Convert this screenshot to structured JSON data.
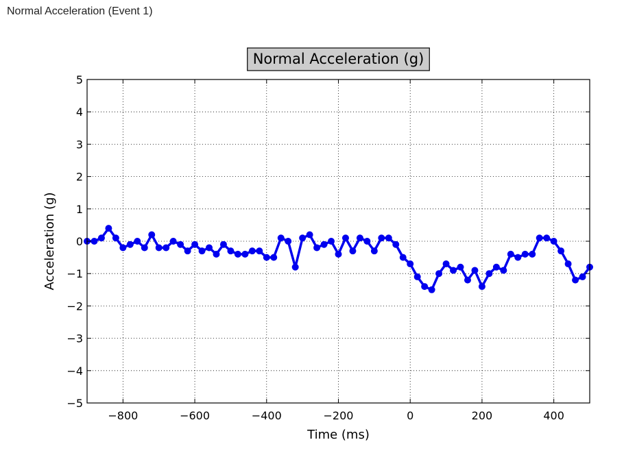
{
  "page": {
    "header": "Normal Acceleration (Event 1)"
  },
  "chart_data": {
    "type": "line",
    "title": "Normal Acceleration (g)",
    "xlabel": "Time (ms)",
    "ylabel": "Acceleration (g)",
    "xlim": [
      -900,
      500
    ],
    "ylim": [
      -5,
      5
    ],
    "xticks": [
      -800,
      -600,
      -400,
      -200,
      0,
      200,
      400
    ],
    "xtick_labels": [
      "−800",
      "−600",
      "−400",
      "−200",
      "0",
      "200",
      "400"
    ],
    "yticks": [
      5,
      4,
      3,
      2,
      1,
      0,
      -1,
      -2,
      -3,
      -4,
      -5
    ],
    "ytick_labels": [
      "5",
      "4",
      "3",
      "2",
      "1",
      "0",
      "−1",
      "−2",
      "−3",
      "−4",
      "−5"
    ],
    "grid": true,
    "marker": "circle",
    "series": [
      {
        "color": "#0000ee",
        "x": [
          -900,
          -880,
          -860,
          -840,
          -820,
          -800,
          -780,
          -760,
          -740,
          -720,
          -700,
          -680,
          -660,
          -640,
          -620,
          -600,
          -580,
          -560,
          -540,
          -520,
          -500,
          -480,
          -460,
          -440,
          -420,
          -400,
          -380,
          -360,
          -340,
          -320,
          -300,
          -280,
          -260,
          -240,
          -220,
          -200,
          -180,
          -160,
          -140,
          -120,
          -100,
          -80,
          -60,
          -40,
          -20,
          0,
          20,
          40,
          60,
          80,
          100,
          120,
          140,
          160,
          180,
          200,
          220,
          240,
          260,
          280,
          300,
          320,
          340,
          360,
          380,
          400,
          420,
          440,
          460,
          480,
          500
        ],
        "y": [
          0.0,
          0.0,
          0.1,
          0.4,
          0.1,
          -0.2,
          -0.1,
          0.0,
          -0.2,
          0.2,
          -0.2,
          -0.2,
          0.0,
          -0.1,
          -0.3,
          -0.1,
          -0.3,
          -0.2,
          -0.4,
          -0.1,
          -0.3,
          -0.4,
          -0.4,
          -0.3,
          -0.3,
          -0.5,
          -0.5,
          0.1,
          0.0,
          -0.8,
          0.1,
          0.2,
          -0.2,
          -0.1,
          0.0,
          -0.4,
          0.1,
          -0.3,
          0.1,
          0.0,
          -0.3,
          0.1,
          0.1,
          -0.1,
          -0.5,
          -0.7,
          -1.1,
          -1.4,
          -1.5,
          -1.0,
          -0.7,
          -0.9,
          -0.8,
          -1.2,
          -0.9,
          -1.4,
          -1.0,
          -0.8,
          -0.9,
          -0.4,
          -0.5,
          -0.4,
          -0.4,
          0.1,
          0.1,
          0.0,
          -0.3,
          -0.7,
          -1.2,
          -1.1,
          -0.8
        ]
      }
    ]
  }
}
